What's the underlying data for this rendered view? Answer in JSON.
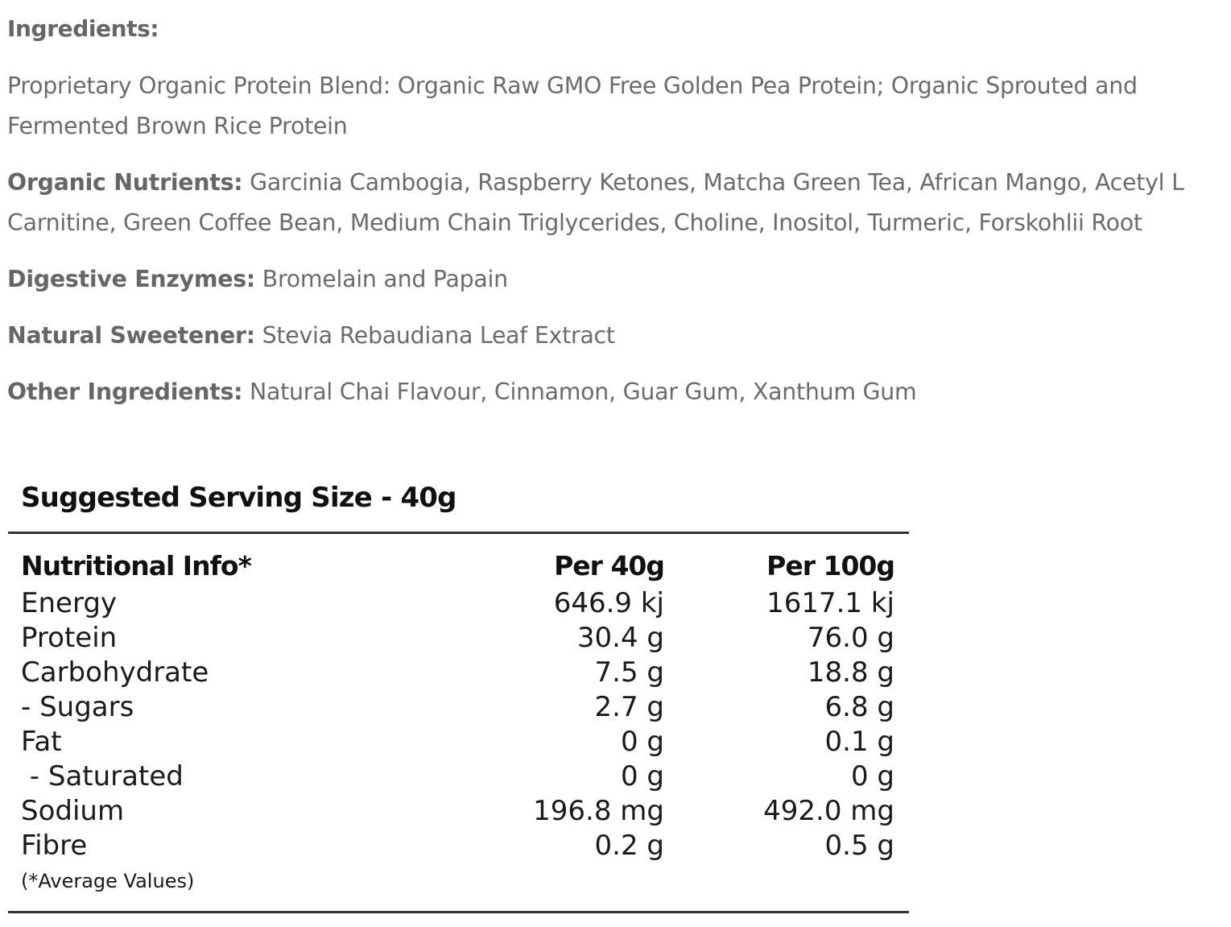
{
  "ingredients": {
    "heading": "Ingredients:",
    "blend_text": "Proprietary Organic Protein Blend: Organic Raw GMO Free Golden Pea Protein; Organic Sprouted and",
    "blend_text_2": "Fermented Brown Rice Protein",
    "nutrients_label": "Organic Nutrients:",
    "nutrients_text": " Garcinia Cambogia, Raspberry Ketones, Matcha Green Tea, African Mango, Acetyl L",
    "nutrients_text_2": "Carnitine, Green Coffee Bean, Medium Chain Triglycerides, Choline, Inositol, Turmeric, Forskohlii Root",
    "enzymes_label": "Digestive Enzymes:",
    "enzymes_text": " Bromelain and Papain",
    "sweetener_label": "Natural Sweetener:",
    "sweetener_text": " Stevia Rebaudiana Leaf Extract",
    "other_label": "Other Ingredients:",
    "other_text": " Natural Chai Flavour, Cinnamon, Guar Gum, Xanthum Gum"
  },
  "nutrition": {
    "serving_title": "Suggested Serving Size - 40g",
    "headers": [
      "Nutritional Info*",
      "Per 40g",
      "Per 100g"
    ],
    "rows": [
      {
        "name": "Energy",
        "per40": "646.9 kj",
        "per100": "1617.1 kj"
      },
      {
        "name": "Protein",
        "per40": "30.4 g",
        "per100": "76.0 g"
      },
      {
        "name": "Carbohydrate",
        "per40": "7.5 g",
        "per100": "18.8 g"
      },
      {
        "name": "- Sugars",
        "per40": "2.7 g",
        "per100": "6.8 g"
      },
      {
        "name": "Fat",
        "per40": "0 g",
        "per100": "0.1 g"
      },
      {
        "name": " - Saturated",
        "per40": "0 g",
        "per100": "0 g"
      },
      {
        "name": "Sodium",
        "per40": "196.8 mg",
        "per100": "492.0 mg"
      },
      {
        "name": "Fibre",
        "per40": "0.2 g",
        "per100": "0.5 g"
      }
    ],
    "footnote": "(*Average Values)"
  }
}
